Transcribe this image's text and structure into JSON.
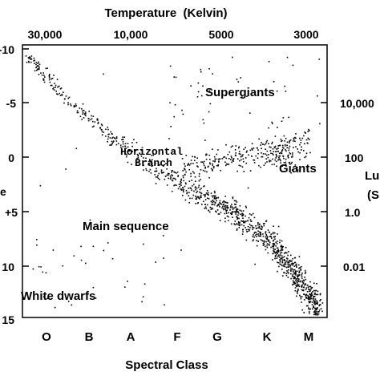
{
  "chart_data": {
    "type": "scatter",
    "title": "",
    "top_axis": {
      "label": "Temperature  (Kelvin)",
      "scale": "log-reversed",
      "ticks": [
        {
          "label": "30,000",
          "value": 30000
        },
        {
          "label": "10,000",
          "value": 10000
        },
        {
          "label": "5000",
          "value": 5000
        },
        {
          "label": "3000",
          "value": 3000
        }
      ]
    },
    "bottom_axis": {
      "label": "Spectral Class",
      "categories": [
        "O",
        "B",
        "A",
        "F",
        "G",
        "K",
        "M"
      ]
    },
    "left_axis": {
      "label_fragments": [
        "e",
        "+5"
      ],
      "reversed": true,
      "ylim": [
        -10,
        15
      ],
      "ticks": [
        "-10",
        "-5",
        "0",
        "+5",
        "10",
        "15"
      ]
    },
    "right_axis": {
      "label_fragments": [
        "Lu",
        "(S"
      ],
      "scale": "log",
      "ticks": [
        "10,000",
        "100",
        "1.0",
        "0.01"
      ]
    },
    "annotations": {
      "supergiants": "Supergiants",
      "giants": "Giants",
      "horizontal_branch": [
        "Horizontal",
        "Branch"
      ],
      "main_sequence": "Main sequence",
      "white_dwarfs": "White dwarfs"
    },
    "grid": false,
    "legend": "none",
    "point_color": "#000000",
    "regions": {
      "main_sequence_trend": {
        "x": [
          35000,
          25000,
          17000,
          12000,
          9000,
          7500,
          6500,
          5800,
          5200,
          4500,
          4000,
          3700,
          3400,
          3200,
          3000,
          2800,
          2700
        ],
        "y": [
          -9.5,
          -5.5,
          -2.0,
          0.8,
          2.5,
          3.5,
          4.3,
          5.0,
          5.8,
          7.0,
          8.2,
          9.3,
          10.5,
          11.5,
          12.5,
          13.5,
          14.2
        ]
      },
      "giants_center": {
        "temperature": 3800,
        "magnitude": 0.0
      },
      "horizontal_branch_center": {
        "temperature": 5500,
        "magnitude": 0.5
      },
      "supergiants_center": {
        "temperature": 4500,
        "magnitude": -6.5
      },
      "white_dwarfs_center": {
        "temperature": 12000,
        "magnitude": 11.0
      }
    }
  }
}
